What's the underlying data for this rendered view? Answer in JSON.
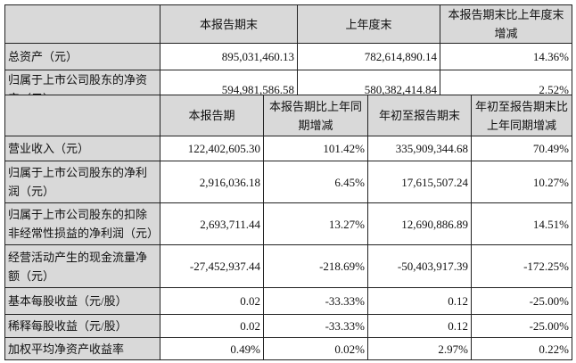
{
  "balance": {
    "headers": [
      "",
      "本报告期末",
      "上年度末",
      "本报告期末比上年度末增减"
    ],
    "rows": [
      {
        "label": "总资产（元）",
        "values": [
          "895,031,460.13",
          "782,614,890.14",
          "14.36%"
        ]
      },
      {
        "label": "归属于上市公司股东的净资产（元）",
        "values": [
          "594,981,586.58",
          "580,382,414.84",
          "2.52%"
        ]
      }
    ]
  },
  "income": {
    "headers": [
      "",
      "本报告期",
      "本报告期比上年同期增减",
      "年初至报告期末",
      "年初至报告期末比上年同期增减"
    ],
    "rows": [
      {
        "label": "营业收入（元）",
        "values": [
          "122,402,605.30",
          "101.42%",
          "335,909,344.68",
          "70.49%"
        ]
      },
      {
        "label": "归属于上市公司股东的净利润（元）",
        "values": [
          "2,916,036.18",
          "6.45%",
          "17,615,507.24",
          "10.27%"
        ]
      },
      {
        "label": "归属于上市公司股东的扣除非经常性损益的净利润（元）",
        "values": [
          "2,693,711.44",
          "13.27%",
          "12,690,886.89",
          "14.51%"
        ]
      },
      {
        "label": "经营活动产生的现金流量净额（元）",
        "values": [
          "-27,452,937.44",
          "-218.69%",
          "-50,403,917.39",
          "-172.25%"
        ]
      },
      {
        "label": "基本每股收益（元/股）",
        "values": [
          "0.02",
          "-33.33%",
          "0.12",
          "-25.00%"
        ]
      },
      {
        "label": "稀释每股收益（元/股）",
        "values": [
          "0.02",
          "-33.33%",
          "0.12",
          "-25.00%"
        ]
      },
      {
        "label": "加权平均净资产收益率",
        "values": [
          "0.49%",
          "0.02%",
          "2.97%",
          "0.22%"
        ]
      }
    ]
  }
}
